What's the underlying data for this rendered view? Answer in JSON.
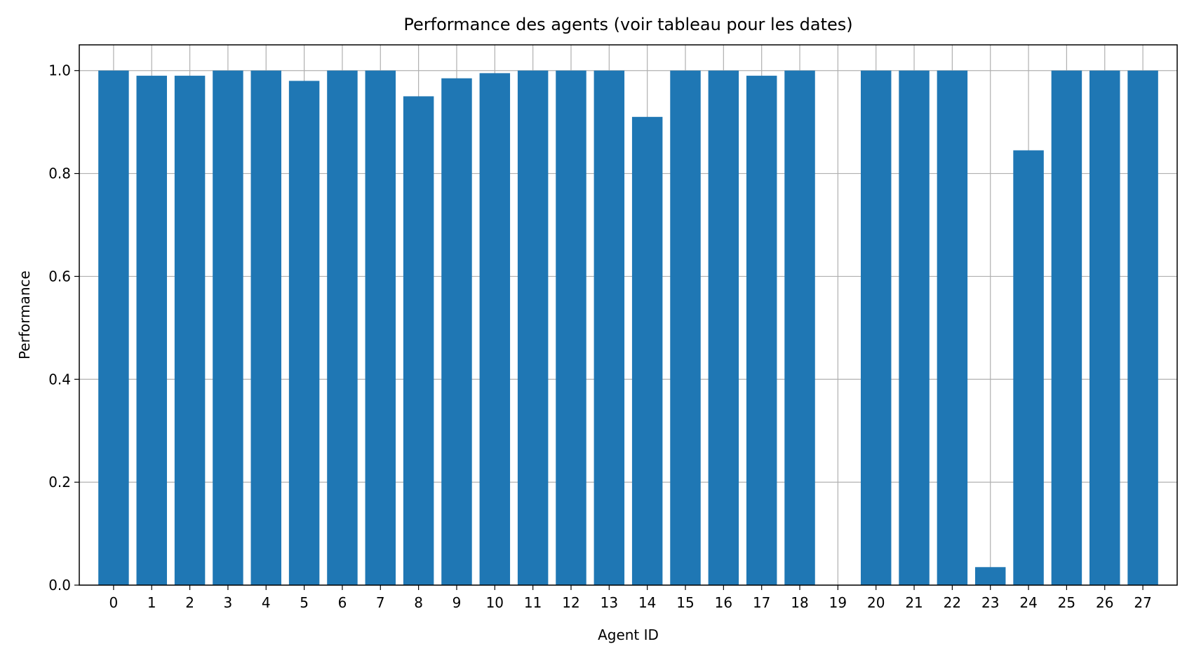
{
  "chart_data": {
    "type": "bar",
    "title": "Performance des agents (voir tableau pour les dates)",
    "xlabel": "Agent ID",
    "ylabel": "Performance",
    "categories": [
      "0",
      "1",
      "2",
      "3",
      "4",
      "5",
      "6",
      "7",
      "8",
      "9",
      "10",
      "11",
      "12",
      "13",
      "14",
      "15",
      "16",
      "17",
      "18",
      "19",
      "20",
      "21",
      "22",
      "23",
      "24",
      "25",
      "26",
      "27"
    ],
    "values": [
      1.0,
      0.99,
      0.99,
      1.0,
      1.0,
      0.98,
      1.0,
      1.0,
      0.95,
      0.985,
      0.995,
      1.0,
      1.0,
      1.0,
      0.91,
      1.0,
      1.0,
      0.99,
      1.0,
      0.0,
      1.0,
      1.0,
      1.0,
      0.035,
      0.845,
      1.0,
      1.0,
      1.0
    ],
    "ylim": [
      0,
      1.05
    ],
    "yticks": [
      0.0,
      0.2,
      0.4,
      0.6,
      0.8,
      1.0
    ],
    "ytick_labels": [
      "0.0",
      "0.2",
      "0.4",
      "0.6",
      "0.8",
      "1.0"
    ],
    "grid": true,
    "bar_color": "#1f77b4",
    "grid_color": "#b0b0b0"
  }
}
